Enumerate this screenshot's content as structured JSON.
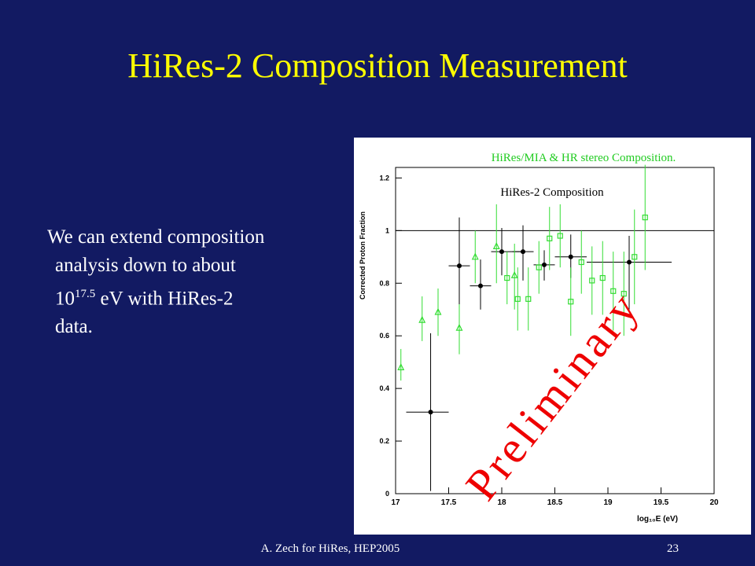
{
  "slide": {
    "title": "HiRes-2 Composition Measurement",
    "body": {
      "line1": "We can extend composition",
      "line2": "analysis down to about",
      "line3_base": "10",
      "line3_exp": "17.5",
      "line3_rest": " eV with HiRes-2",
      "line4": "data."
    },
    "footer": "A. Zech for HiRes, HEP2005",
    "page": "23"
  },
  "chart_data": {
    "type": "scatter",
    "xlabel": "log₁₀E (eV)",
    "ylabel": "Corrected Proton Fraction",
    "xlim": [
      17,
      20
    ],
    "ylim": [
      0,
      1.24
    ],
    "xticks": [
      17,
      17.5,
      18,
      18.5,
      19,
      19.5,
      20
    ],
    "yticks": [
      0,
      0.2,
      0.4,
      0.6,
      0.8,
      1,
      1.2
    ],
    "hline": 1,
    "annotations": {
      "mia_stereo": "HiRes/MIA & HR stereo Composition.",
      "hires2": "HiRes-2 Composition",
      "preliminary": "Preliminary"
    },
    "series": [
      {
        "marker": "circle",
        "color": "#000000",
        "x": [
          17.33,
          17.6,
          17.8,
          18.0,
          18.2,
          18.4,
          18.65,
          19.2
        ],
        "values": [
          0.31,
          0.866,
          0.79,
          0.92,
          0.92,
          0.87,
          0.9,
          0.88
        ],
        "y_low": [
          0.01,
          0.6,
          0.7,
          0.83,
          0.81,
          0.81,
          0.82,
          0.7
        ],
        "y_high": [
          0.61,
          1.05,
          0.89,
          1.01,
          1.02,
          0.925,
          0.985,
          0.98
        ],
        "x_low": [
          17.1,
          17.5,
          17.7,
          17.9,
          18.1,
          18.3,
          18.5,
          18.8
        ],
        "x_high": [
          17.5,
          17.7,
          17.9,
          18.2,
          18.3,
          18.5,
          18.8,
          19.6
        ]
      },
      {
        "marker": "triangle",
        "color": "#33dd33",
        "x": [
          17.05,
          17.25,
          17.4,
          17.6,
          17.75,
          17.95,
          18.12
        ],
        "values": [
          0.48,
          0.66,
          0.69,
          0.63,
          0.9,
          0.94,
          0.83
        ],
        "y_low": [
          0.43,
          0.58,
          0.6,
          0.53,
          0.8,
          0.8,
          0.7
        ],
        "y_high": [
          0.55,
          0.75,
          0.78,
          0.72,
          1.0,
          1.1,
          0.95
        ]
      },
      {
        "marker": "square",
        "color": "#33dd33",
        "x": [
          18.05,
          18.15,
          18.25,
          18.35,
          18.45,
          18.55,
          18.65,
          18.75,
          18.85,
          18.95,
          19.05,
          19.15,
          19.25,
          19.35
        ],
        "values": [
          0.82,
          0.74,
          0.74,
          0.86,
          0.97,
          0.98,
          0.73,
          0.88,
          0.81,
          0.82,
          0.77,
          0.76,
          0.9,
          1.05
        ],
        "y_low": [
          0.72,
          0.62,
          0.62,
          0.76,
          0.85,
          0.86,
          0.6,
          0.76,
          0.68,
          0.68,
          0.62,
          0.6,
          0.72,
          0.85
        ],
        "y_high": [
          0.92,
          0.86,
          0.86,
          0.96,
          1.09,
          1.1,
          0.86,
          1.0,
          0.94,
          0.96,
          0.92,
          0.92,
          1.08,
          1.25
        ]
      }
    ]
  }
}
